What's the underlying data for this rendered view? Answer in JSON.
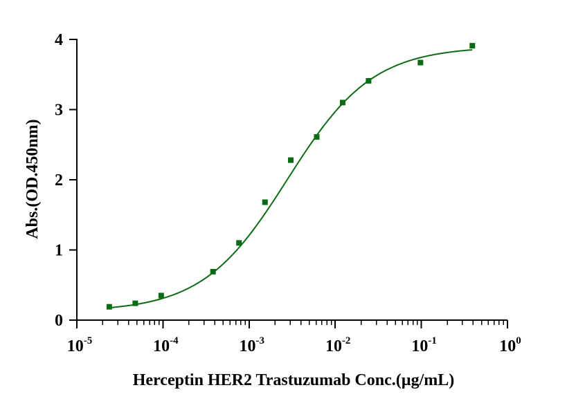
{
  "colors": {
    "series": "#0b6b13",
    "axis": "#000000"
  },
  "chart_data": {
    "type": "scatter",
    "title": "",
    "xlabel": "Herceptin HER2 Trastuzumab Conc.(µg/mL)",
    "ylabel": "Abs.(OD.450nm)",
    "xscale": "log",
    "xlim": [
      1e-05,
      1
    ],
    "ylim": [
      0,
      4
    ],
    "yticks": [
      "0",
      "1",
      "2",
      "3",
      "4"
    ],
    "xticks": [
      {
        "base": "10",
        "exp": "-5"
      },
      {
        "base": "10",
        "exp": "-4"
      },
      {
        "base": "10",
        "exp": "-3"
      },
      {
        "base": "10",
        "exp": "-2"
      },
      {
        "base": "10",
        "exp": "-1"
      },
      {
        "base": "10",
        "exp": "0"
      }
    ],
    "grid": false,
    "legend": "none",
    "series": [
      {
        "marker": "square",
        "x": [
          2.38e-05,
          4.77e-05,
          9.54e-05,
          0.000381,
          0.000763,
          0.00153,
          0.00305,
          0.0061,
          0.0122,
          0.0244,
          0.0977,
          0.391
        ],
        "y": [
          0.19,
          0.24,
          0.35,
          0.69,
          1.1,
          1.68,
          2.28,
          2.61,
          3.1,
          3.41,
          3.67,
          3.91
        ]
      }
    ],
    "fit_curve": {
      "model": "4PL",
      "bottom": 0.12,
      "top": 3.9,
      "ec50": 0.0028,
      "hill": 0.88,
      "x_range": [
        2.38e-05,
        0.391
      ]
    }
  }
}
